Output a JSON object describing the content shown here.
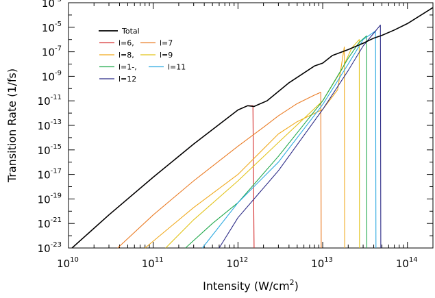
{
  "chart_data": {
    "type": "line",
    "title": "",
    "xlabel": "Intensity (W/cm",
    "xlabel_sup": "2",
    "xlabel_end": ")",
    "ylabel": "Transition Rate (1/fs)",
    "x_scale": "log",
    "y_scale": "log",
    "xlim": [
      10000000000.0,
      200000000000000.0
    ],
    "ylim": [
      1e-23,
      0.001
    ],
    "grid": false,
    "legend_position": "top-left",
    "x_tick_labels": [
      {
        "base": "10",
        "exp": "10",
        "value": 10000000000.0
      },
      {
        "base": "10",
        "exp": "11",
        "value": 100000000000.0
      },
      {
        "base": "10",
        "exp": "12",
        "value": 1000000000000.0
      },
      {
        "base": "10",
        "exp": "13",
        "value": 10000000000000.0
      },
      {
        "base": "10",
        "exp": "14",
        "value": 100000000000000.0
      }
    ],
    "y_tick_labels": [
      {
        "base": "10",
        "exp": "-3",
        "value": 0.001
      },
      {
        "base": "10",
        "exp": "-5",
        "value": 1e-05
      },
      {
        "base": "10",
        "exp": "-7",
        "value": 1e-07
      },
      {
        "base": "10",
        "exp": "-9",
        "value": 1e-09
      },
      {
        "base": "10",
        "exp": "-11",
        "value": 1e-11
      },
      {
        "base": "10",
        "exp": "-13",
        "value": 1e-13
      },
      {
        "base": "10",
        "exp": "-15",
        "value": 1e-15
      },
      {
        "base": "10",
        "exp": "-17",
        "value": 1e-17
      },
      {
        "base": "10",
        "exp": "-19",
        "value": 1e-19
      },
      {
        "base": "10",
        "exp": "-21",
        "value": 1e-21
      },
      {
        "base": "10",
        "exp": "-23",
        "value": 1e-23
      }
    ],
    "series": [
      {
        "name": "Total",
        "color": "#000000",
        "x": [
          11000000000.0,
          30000000000.0,
          100000000000.0,
          300000000000.0,
          1000000000000.0,
          1300000000000.0,
          1550000000000.0,
          2200000000000.0,
          4000000000000.0,
          8000000000000.0,
          10000000000000.0,
          13000000000000.0,
          20000000000000.0,
          30000000000000.0,
          40000000000000.0,
          50000000000000.0,
          70000000000000.0,
          100000000000000.0,
          200000000000000.0
        ],
        "y": [
          1e-23,
          5e-21,
          6e-18,
          3e-15,
          1.8e-12,
          4e-12,
          3.5e-12,
          1e-11,
          3e-10,
          7e-09,
          1.2e-08,
          5e-08,
          1.5e-07,
          5e-07,
          1.3e-06,
          2.2e-06,
          6e-06,
          2e-05,
          0.0004
        ]
      },
      {
        "name": "l=6,",
        "color": "#d42a2a",
        "drop_x": 1550000000000.0,
        "x": [
          11000000000.0,
          30000000000.0,
          100000000000.0,
          300000000000.0,
          1000000000000.0,
          1300000000000.0,
          1500000000000.0,
          1550000000000.0
        ],
        "y": [
          1e-23,
          5e-21,
          6e-18,
          3e-15,
          1.8e-12,
          4e-12,
          4e-12,
          1e-23
        ]
      },
      {
        "name": "l=7",
        "color": "#ea7a22",
        "drop_x": 9500000000000.0,
        "x": [
          38000000000.0,
          100000000000.0,
          300000000000.0,
          1000000000000.0,
          2000000000000.0,
          3000000000000.0,
          5000000000000.0,
          8000000000000.0,
          9500000000000.0,
          9600000000000.0
        ],
        "y": [
          1e-23,
          5e-21,
          3e-18,
          2e-15,
          7e-14,
          6e-13,
          6e-12,
          3e-11,
          5e-11,
          1e-23
        ]
      },
      {
        "name": "l=8,",
        "color": "#f0a91c",
        "drop_x": 18000000000000.0,
        "x": [
          80000000000.0,
          300000000000.0,
          1000000000000.0,
          3000000000000.0,
          5000000000000.0,
          10000000000000.0,
          15000000000000.0,
          18000000000000.0,
          18200000000000.0
        ],
        "y": [
          1e-23,
          2e-20,
          1e-17,
          2e-14,
          2e-13,
          2e-12,
          8e-11,
          2.5e-07,
          1e-23
        ]
      },
      {
        "name": "l=9",
        "color": "#e2c31a",
        "drop_x": 27000000000000.0,
        "x": [
          140000000000.0,
          300000000000.0,
          1000000000000.0,
          3000000000000.0,
          10000000000000.0,
          17000000000000.0,
          22000000000000.0,
          27000000000000.0,
          27200000000000.0
        ],
        "y": [
          1e-23,
          2e-21,
          3e-18,
          4e-15,
          1e-11,
          4e-09,
          2e-07,
          1e-06,
          1e-23
        ]
      },
      {
        "name": "l=1-,",
        "color": "#1fa84a",
        "drop_x": 33000000000000.0,
        "x": [
          240000000000.0,
          500000000000.0,
          1000000000000.0,
          3000000000000.0,
          10000000000000.0,
          20000000000000.0,
          27000000000000.0,
          33000000000000.0,
          33200000000000.0
        ],
        "y": [
          1e-23,
          1e-21,
          5e-20,
          3e-16,
          1e-11,
          3e-08,
          6e-07,
          2e-06,
          1e-23
        ]
      },
      {
        "name": "l=11",
        "color": "#2aa8e0",
        "drop_x": 42000000000000.0,
        "x": [
          380000000000.0,
          1000000000000.0,
          3000000000000.0,
          10000000000000.0,
          20000000000000.0,
          30000000000000.0,
          42000000000000.0,
          42500000000000.0
        ],
        "y": [
          1e-23,
          5e-20,
          1e-16,
          5e-12,
          1e-08,
          1e-06,
          5e-06,
          1e-23
        ]
      },
      {
        "name": "l=12",
        "color": "#2b2a86",
        "drop_x": 48000000000000.0,
        "x": [
          600000000000.0,
          1000000000000.0,
          3000000000000.0,
          10000000000000.0,
          20000000000000.0,
          30000000000000.0,
          48000000000000.0,
          48500000000000.0
        ],
        "y": [
          1e-23,
          3e-21,
          2e-17,
          2e-12,
          3e-09,
          3e-07,
          1.5e-05,
          1e-23
        ]
      }
    ],
    "legend_rows": [
      [
        {
          "series": 0
        }
      ],
      [
        {
          "series": 1
        },
        {
          "series": 2
        }
      ],
      [
        {
          "series": 3
        },
        {
          "series": 4
        }
      ],
      [
        {
          "series": 5
        },
        {
          "series": 6
        }
      ],
      [
        {
          "series": 7
        }
      ]
    ]
  }
}
